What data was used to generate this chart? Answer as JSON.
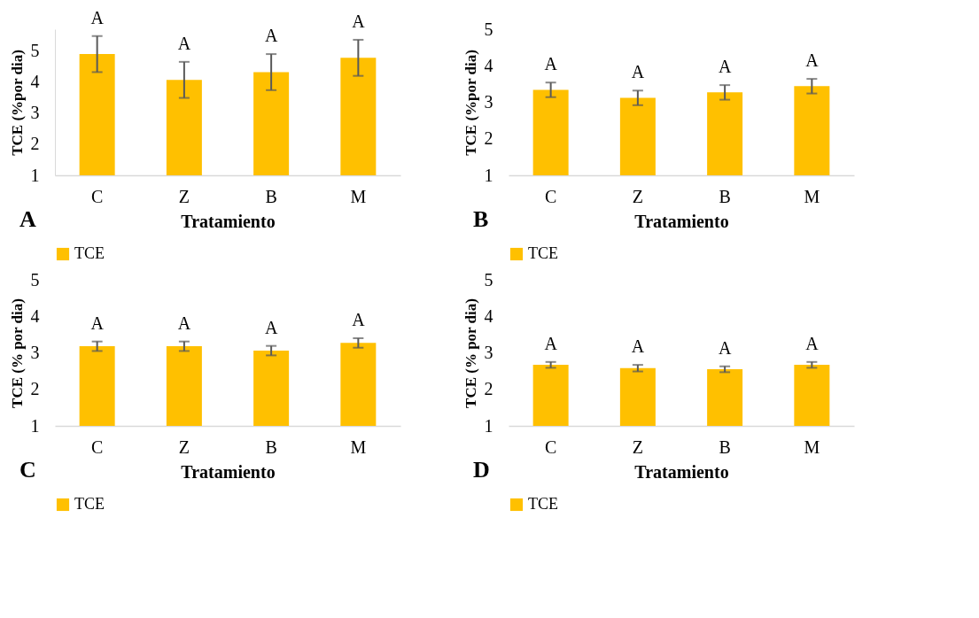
{
  "chart_data": [
    {
      "type": "bar",
      "xlabel": "Tratamiento",
      "ylabel": "TCE (%por dia)",
      "categories": [
        "C",
        "Z",
        "B",
        "M"
      ],
      "series": [
        {
          "name": "TCE",
          "color": "#ffc000",
          "values": [
            4.9,
            4.07,
            4.32,
            4.78
          ],
          "errors": [
            0.58,
            0.58,
            0.58,
            0.58
          ]
        }
      ],
      "ylim": [
        1,
        5.7
      ],
      "yticks": [
        1,
        2,
        3,
        4,
        5
      ],
      "grid": false,
      "legend": "bottom",
      "annotations": [
        {
          "text": "A",
          "x": "C",
          "y": 5.48
        },
        {
          "text": "A",
          "x": "Z",
          "y": 4.65
        },
        {
          "text": "A",
          "x": "B",
          "y": 4.9
        },
        {
          "text": "A",
          "x": "M",
          "y": 5.36
        },
        "A"
      ]
    },
    {
      "type": "bar",
      "xlabel": "Tratamiento",
      "ylabel": "TCE (%por dia)",
      "categories": [
        "C",
        "Z",
        "B",
        "M"
      ],
      "series": [
        {
          "name": "TCE",
          "color": "#ffc000",
          "values": [
            3.34,
            3.12,
            3.27,
            3.44
          ],
          "errors": [
            0.2,
            0.2,
            0.2,
            0.2
          ]
        }
      ],
      "ylim": [
        1,
        5
      ],
      "yticks": [
        1,
        2,
        3,
        4,
        5
      ],
      "grid": false,
      "legend": "bottom",
      "annotations": [
        {
          "text": "A",
          "x": "C",
          "y": 3.54
        },
        {
          "text": "A",
          "x": "Z",
          "y": 3.32
        },
        {
          "text": "A",
          "x": "B",
          "y": 3.47
        },
        {
          "text": "A",
          "x": "M",
          "y": 3.64
        },
        "B"
      ]
    },
    {
      "type": "bar",
      "xlabel": "Tratamiento",
      "ylabel": "TCE (% por dia)",
      "categories": [
        "C",
        "Z",
        "B",
        "M"
      ],
      "series": [
        {
          "name": "TCE",
          "color": "#ffc000",
          "values": [
            3.18,
            3.18,
            3.06,
            3.27
          ],
          "errors": [
            0.13,
            0.13,
            0.13,
            0.13
          ]
        }
      ],
      "ylim": [
        1,
        5
      ],
      "yticks": [
        1,
        2,
        3,
        4,
        5
      ],
      "grid": false,
      "legend": "bottom",
      "annotations": [
        {
          "text": "A",
          "x": "C",
          "y": 3.31
        },
        {
          "text": "A",
          "x": "Z",
          "y": 3.31
        },
        {
          "text": "A",
          "x": "B",
          "y": 3.19
        },
        {
          "text": "A",
          "x": "M",
          "y": 3.4
        },
        "C"
      ]
    },
    {
      "type": "bar",
      "xlabel": "Tratamiento",
      "ylabel": "TCE (% por dia)",
      "categories": [
        "C",
        "Z",
        "B",
        "M"
      ],
      "series": [
        {
          "name": "TCE",
          "color": "#ffc000",
          "values": [
            2.67,
            2.58,
            2.55,
            2.67
          ],
          "errors": [
            0.08,
            0.09,
            0.08,
            0.08
          ]
        }
      ],
      "ylim": [
        1,
        5
      ],
      "yticks": [
        1,
        2,
        3,
        4,
        5
      ],
      "grid": false,
      "legend": "bottom",
      "annotations": [
        {
          "text": "A",
          "x": "C",
          "y": 2.75
        },
        {
          "text": "A",
          "x": "Z",
          "y": 2.67
        },
        {
          "text": "A",
          "x": "B",
          "y": 2.63
        },
        {
          "text": "A",
          "x": "M",
          "y": 2.75
        },
        "D"
      ]
    }
  ]
}
